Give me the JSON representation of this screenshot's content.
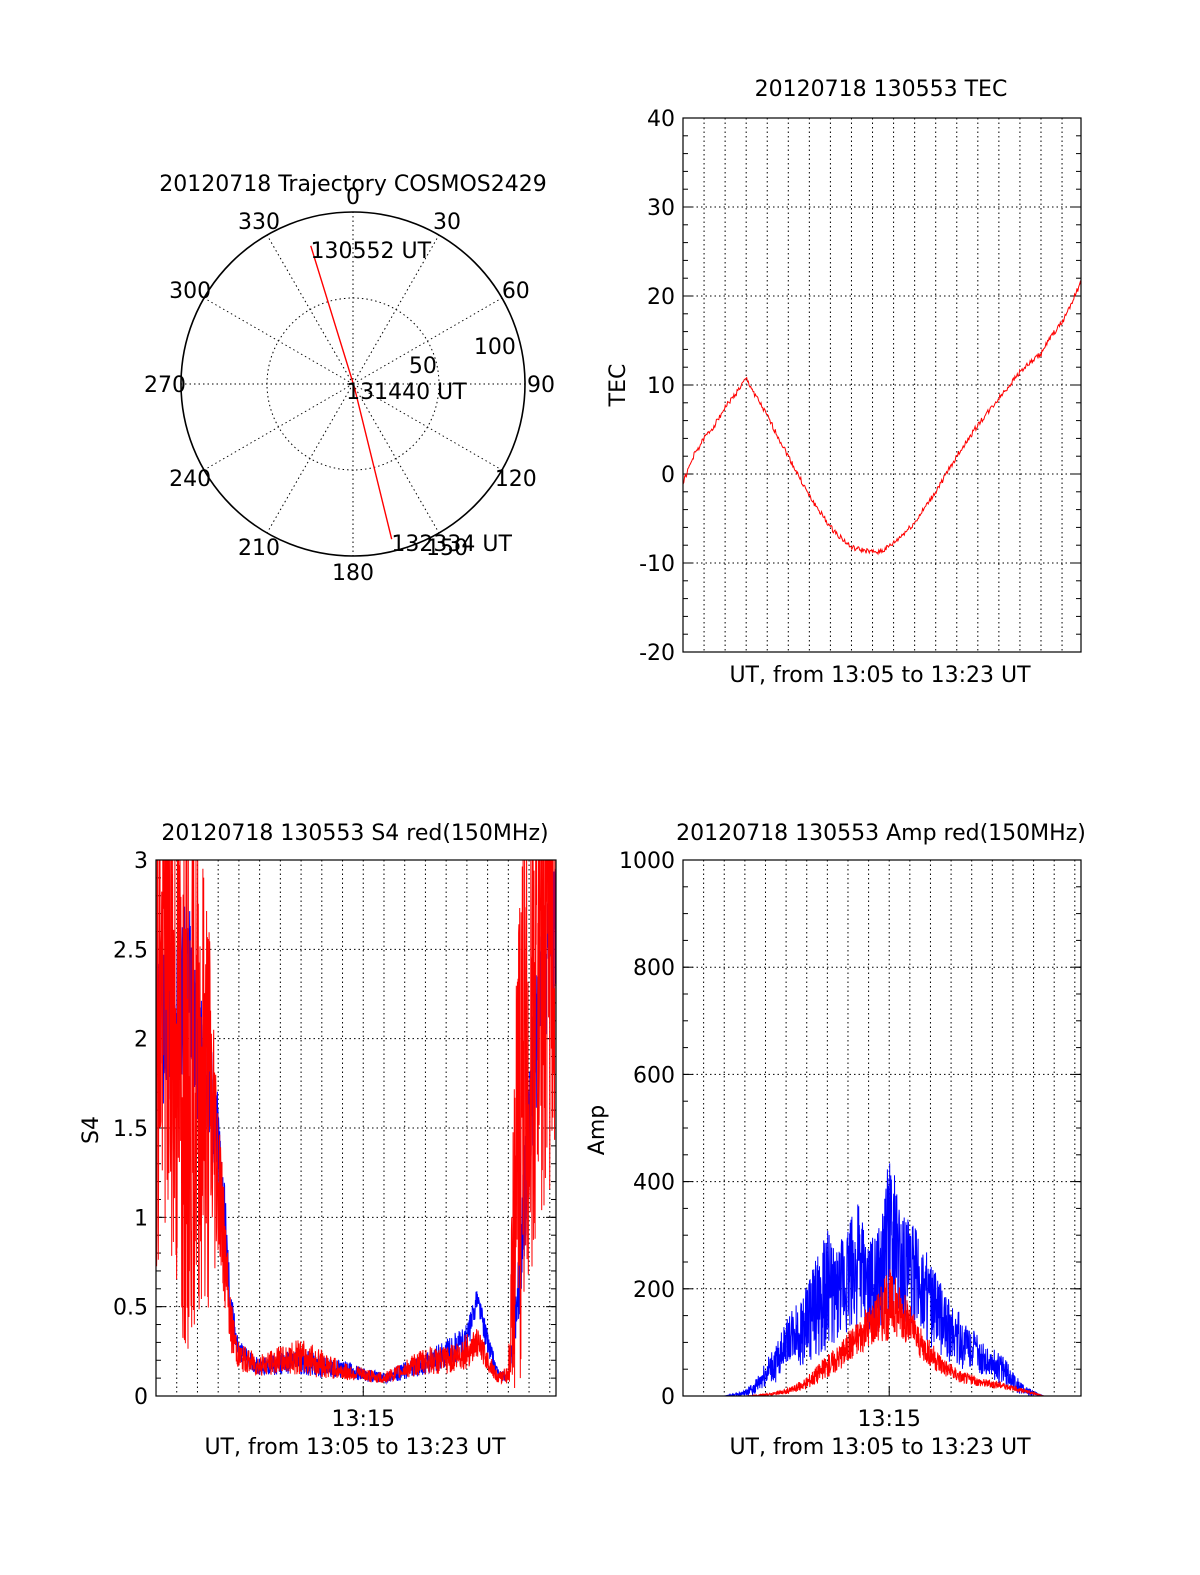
{
  "chart_data": [
    {
      "id": "trajectory",
      "type": "polar",
      "title": "20120718 Trajectory COSMOS2429",
      "angle_labels": [
        "0",
        "30",
        "60",
        "90",
        "120",
        "150",
        "180",
        "210",
        "240",
        "270",
        "300",
        "330"
      ],
      "radial_labels": [
        "50",
        "100"
      ],
      "rmax": 100,
      "track_points": [
        {
          "label": "130552 UT",
          "az": 343,
          "r": 84
        },
        {
          "label": "131440 UT",
          "az": 157,
          "r": 2
        },
        {
          "label": "132334 UT",
          "az": 166,
          "r": 93
        }
      ],
      "line_color": "#ff0000"
    },
    {
      "id": "tec",
      "type": "line",
      "title": "20120718 130553 TEC",
      "xlabel": "UT, from 13:05 to 13:23 UT",
      "ylabel": "TEC",
      "xlim": [
        0,
        18.9
      ],
      "ylim": [
        -20,
        40
      ],
      "yticks": [
        "-20",
        "-10",
        "0",
        "10",
        "20",
        "30",
        "40"
      ],
      "series": [
        {
          "color": "#ff0000",
          "x": [
            0,
            0.5,
            1,
            1.5,
            2,
            2.5,
            3,
            4,
            5,
            6,
            7,
            8,
            9,
            9.5,
            10,
            11,
            12,
            13,
            14,
            15,
            16,
            17,
            17.5,
            18,
            18.5,
            18.9
          ],
          "y": [
            -1,
            2,
            4,
            5.5,
            7.5,
            9,
            10.7,
            6.5,
            2,
            -2.5,
            -6,
            -8.3,
            -8.8,
            -8.6,
            -7.8,
            -5.5,
            -2,
            2,
            5.5,
            8.5,
            11.5,
            13.5,
            15.5,
            17,
            19.5,
            21.5
          ]
        }
      ]
    },
    {
      "id": "s4",
      "type": "line",
      "title": "20120718 130553 S4 red(150MHz)",
      "xlabel": "UT, from 13:05 to 13:23 UT",
      "ylabel": "S4",
      "xlim": [
        0,
        19.3
      ],
      "ylim": [
        0,
        3
      ],
      "yticks": [
        "0",
        "0.5",
        "1",
        "1.5",
        "2",
        "2.5",
        "3"
      ],
      "xticks": [
        {
          "x": 10,
          "label": "13:15"
        }
      ],
      "series": [
        {
          "color": "#0000ff",
          "x": [
            0,
            0.5,
            1,
            1.5,
            2,
            2.5,
            3,
            3.3,
            3.6,
            4,
            5,
            6,
            7,
            8,
            9,
            10,
            11,
            12,
            13,
            14,
            15,
            15.5,
            16,
            16.5,
            17,
            17.5,
            18,
            18.5,
            19,
            19.3
          ],
          "y": [
            2.3,
            2.0,
            2.1,
            2.4,
            1.9,
            1.8,
            1.4,
            1.0,
            0.5,
            0.25,
            0.16,
            0.18,
            0.2,
            0.16,
            0.15,
            0.12,
            0.1,
            0.14,
            0.18,
            0.24,
            0.3,
            0.55,
            0.3,
            0.12,
            0.1,
            0.6,
            1.5,
            2.2,
            2.5,
            2.6
          ],
          "amp": [
            0.4,
            0.5,
            0.45,
            0.5,
            0.4,
            0.35,
            0.3,
            0.25,
            0.1,
            0.06,
            0.05,
            0.06,
            0.08,
            0.06,
            0.05,
            0.04,
            0.03,
            0.05,
            0.06,
            0.08,
            0.1,
            0.06,
            0.08,
            0.03,
            0.02,
            0.2,
            0.4,
            0.4,
            0.4,
            0.4
          ]
        },
        {
          "color": "#ff0000",
          "x": [
            0,
            0.5,
            1,
            1.5,
            2,
            2.5,
            3,
            3.3,
            3.6,
            4,
            5,
            6,
            7,
            8,
            9,
            10,
            11,
            12,
            13,
            14,
            15,
            15.5,
            16,
            16.5,
            17,
            17.5,
            18,
            18.5,
            19,
            19.3
          ],
          "y": [
            2.2,
            2.4,
            2.0,
            1.6,
            1.9,
            1.7,
            1.3,
            0.8,
            0.4,
            0.22,
            0.17,
            0.2,
            0.22,
            0.18,
            0.14,
            0.12,
            0.1,
            0.15,
            0.2,
            0.2,
            0.25,
            0.3,
            0.2,
            0.1,
            0.12,
            1.5,
            2.0,
            2.4,
            2.6,
            2.7
          ],
          "amp": [
            1.5,
            1.6,
            1.6,
            1.5,
            1.4,
            1.3,
            0.5,
            0.3,
            0.15,
            0.08,
            0.06,
            0.08,
            0.1,
            0.08,
            0.05,
            0.04,
            0.03,
            0.05,
            0.08,
            0.08,
            0.1,
            0.08,
            0.06,
            0.03,
            0.05,
            1.5,
            1.5,
            1.5,
            1.5,
            1.5
          ]
        }
      ]
    },
    {
      "id": "amp",
      "type": "line",
      "title": "20120718 130553 Amp red(150MHz)",
      "xlabel": "UT, from 13:05 to 13:23 UT",
      "ylabel": "Amp",
      "xlim": [
        0,
        19.3
      ],
      "ylim": [
        0,
        1000
      ],
      "yticks": [
        "0",
        "200",
        "400",
        "600",
        "800",
        "1000"
      ],
      "xticks": [
        {
          "x": 10,
          "label": "13:15"
        }
      ],
      "series": [
        {
          "color": "#0000ff",
          "x": [
            0,
            2,
            3,
            3.5,
            4,
            4.5,
            5,
            5.5,
            6,
            6.5,
            7,
            7.5,
            8,
            8.5,
            9,
            9.5,
            10,
            10.5,
            11,
            11.5,
            12,
            12.5,
            13,
            13.5,
            14,
            14.5,
            15,
            15.5,
            16,
            16.5,
            17,
            17.5,
            18,
            19.3
          ],
          "y": [
            0,
            0,
            5,
            15,
            40,
            60,
            100,
            120,
            130,
            160,
            200,
            180,
            220,
            240,
            200,
            220,
            300,
            260,
            230,
            210,
            170,
            140,
            120,
            100,
            90,
            70,
            60,
            50,
            30,
            10,
            5,
            0,
            0,
            0
          ],
          "amp": [
            0,
            0,
            5,
            15,
            25,
            35,
            40,
            60,
            80,
            100,
            110,
            90,
            110,
            120,
            80,
            100,
            150,
            120,
            100,
            90,
            80,
            70,
            60,
            50,
            40,
            30,
            30,
            30,
            20,
            10,
            5,
            0,
            0,
            0
          ]
        },
        {
          "color": "#ff0000",
          "x": [
            0,
            3,
            4,
            5,
            5.5,
            6,
            6.5,
            7,
            7.5,
            8,
            8.5,
            9,
            9.5,
            10,
            10.5,
            11,
            11.5,
            12,
            12.5,
            13,
            13.5,
            14,
            14.5,
            15,
            15.5,
            16,
            16.5,
            17,
            17.5,
            19.3
          ],
          "y": [
            0,
            0,
            2,
            8,
            15,
            25,
            40,
            55,
            70,
            90,
            110,
            130,
            150,
            170,
            160,
            130,
            100,
            80,
            60,
            45,
            35,
            30,
            25,
            22,
            20,
            15,
            10,
            5,
            0,
            0
          ],
          "amp": [
            0,
            0,
            2,
            5,
            8,
            12,
            18,
            22,
            25,
            30,
            35,
            40,
            50,
            70,
            50,
            40,
            30,
            25,
            20,
            15,
            12,
            10,
            8,
            8,
            6,
            5,
            4,
            2,
            0,
            0
          ]
        }
      ]
    }
  ]
}
